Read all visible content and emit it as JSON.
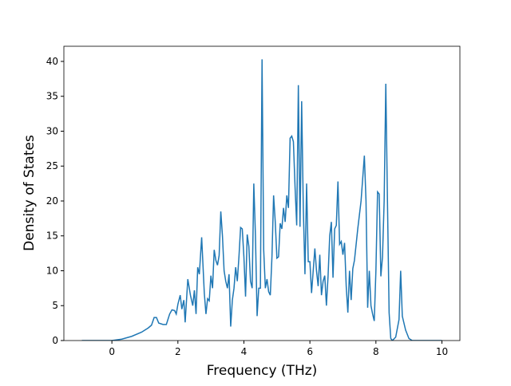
{
  "chart_data": {
    "type": "line",
    "xlabel": "Frequency (THz)",
    "ylabel": "Density of States",
    "color": "#1f77b4",
    "xlim": [
      -1.455,
      10.545
    ],
    "ylim": [
      0,
      42.17
    ],
    "xticks": [
      0,
      2,
      4,
      6,
      8,
      10
    ],
    "yticks": [
      0,
      5,
      10,
      15,
      20,
      25,
      30,
      35,
      40
    ],
    "x": [
      -0.91,
      0,
      0.3,
      0.6,
      0.9,
      1.1,
      1.2,
      1.28,
      1.35,
      1.42,
      1.55,
      1.65,
      1.75,
      1.82,
      1.9,
      1.95,
      2.0,
      2.07,
      2.12,
      2.18,
      2.22,
      2.3,
      2.38,
      2.45,
      2.5,
      2.55,
      2.6,
      2.65,
      2.72,
      2.8,
      2.85,
      2.9,
      2.95,
      3.0,
      3.05,
      3.1,
      3.15,
      3.2,
      3.25,
      3.3,
      3.35,
      3.4,
      3.45,
      3.5,
      3.55,
      3.6,
      3.65,
      3.7,
      3.75,
      3.8,
      3.85,
      3.9,
      3.95,
      4.0,
      4.05,
      4.1,
      4.15,
      4.2,
      4.25,
      4.3,
      4.35,
      4.4,
      4.45,
      4.5,
      4.55,
      4.6,
      4.65,
      4.7,
      4.75,
      4.8,
      4.85,
      4.9,
      4.95,
      5.0,
      5.05,
      5.1,
      5.15,
      5.2,
      5.25,
      5.3,
      5.35,
      5.4,
      5.45,
      5.5,
      5.55,
      5.6,
      5.65,
      5.7,
      5.75,
      5.8,
      5.85,
      5.9,
      5.95,
      6.0,
      6.05,
      6.1,
      6.15,
      6.2,
      6.25,
      6.3,
      6.35,
      6.4,
      6.45,
      6.5,
      6.55,
      6.6,
      6.65,
      6.7,
      6.75,
      6.8,
      6.85,
      6.9,
      6.95,
      7.0,
      7.05,
      7.1,
      7.15,
      7.2,
      7.25,
      7.3,
      7.35,
      7.45,
      7.55,
      7.65,
      7.7,
      7.75,
      7.8,
      7.85,
      7.9,
      7.95,
      8.0,
      8.05,
      8.1,
      8.15,
      8.2,
      8.25,
      8.3,
      8.35,
      8.4,
      8.45,
      8.5,
      8.6,
      8.7,
      8.75,
      8.8,
      8.9,
      9.0,
      9.1,
      10
    ],
    "values": [
      0,
      0,
      0.2,
      0.6,
      1.2,
      1.8,
      2.2,
      3.3,
      3.3,
      2.5,
      2.3,
      2.3,
      3.8,
      4.4,
      4.3,
      3.8,
      5.2,
      6.5,
      4.5,
      5.8,
      2.6,
      8.8,
      6.5,
      5,
      7.2,
      3.8,
      10.5,
      9.5,
      14.8,
      6.8,
      3.8,
      6,
      5.7,
      9.3,
      7.5,
      13,
      11.5,
      10.8,
      12.2,
      18.5,
      15,
      10,
      8.5,
      7.5,
      9.5,
      2,
      5.8,
      7.5,
      10.5,
      8.5,
      12,
      16.2,
      16,
      12,
      6.3,
      15.2,
      13.5,
      8.5,
      7.5,
      22.5,
      15,
      3.5,
      7.5,
      7.5,
      40.3,
      13,
      7.5,
      8.8,
      7,
      6.5,
      12,
      20.8,
      17,
      11.8,
      12,
      16.8,
      16,
      19,
      17,
      20.8,
      19,
      29,
      29.3,
      28.5,
      22,
      16.5,
      36.6,
      16.3,
      34.3,
      19,
      9.5,
      22.5,
      11.3,
      11.3,
      6.8,
      10,
      13.2,
      10,
      7.8,
      12.3,
      6.5,
      8.5,
      9.3,
      5,
      9.2,
      15,
      17,
      9,
      16,
      16.5,
      22.8,
      13.8,
      14.2,
      12.3,
      14,
      7.8,
      4,
      10,
      5.8,
      10.3,
      11.5,
      16,
      20,
      26.5,
      20,
      4.7,
      10,
      5,
      3.8,
      2.8,
      10,
      21.3,
      21,
      9.2,
      12,
      20,
      36.8,
      20,
      4,
      0.3,
      0,
      0.5,
      3,
      10,
      3.5,
      1.5,
      0.3,
      0,
      0
    ]
  }
}
